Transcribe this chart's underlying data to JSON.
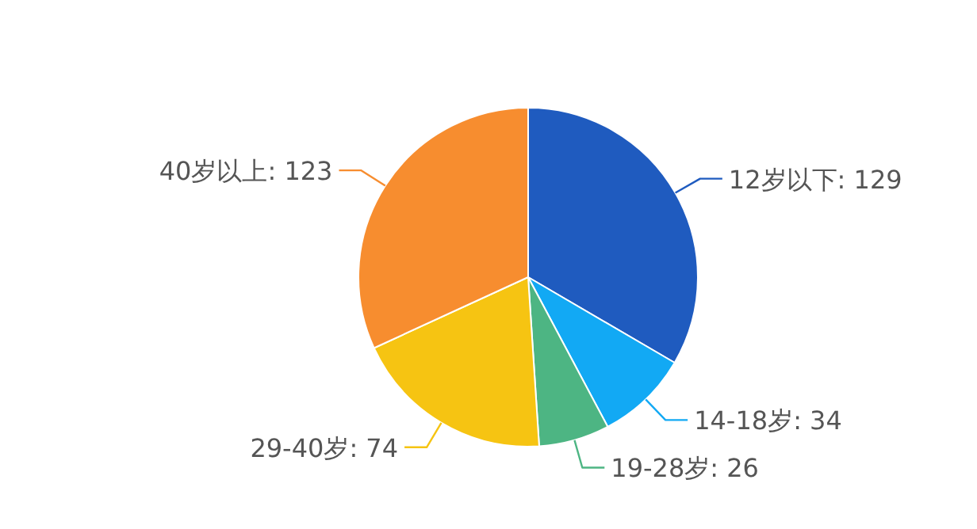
{
  "chart_data": {
    "type": "pie",
    "categories": [
      "12岁以下",
      "14-18岁",
      "19-28岁",
      "29-40岁",
      "40岁以上"
    ],
    "values": [
      129,
      34,
      26,
      74,
      123
    ],
    "colors": [
      "#1f5bbf",
      "#12a9f4",
      "#4db583",
      "#f6c412",
      "#f78d2f"
    ],
    "value_labels": [
      ": 129",
      ": 34",
      ": 26",
      ": 74",
      ": 123"
    ]
  }
}
